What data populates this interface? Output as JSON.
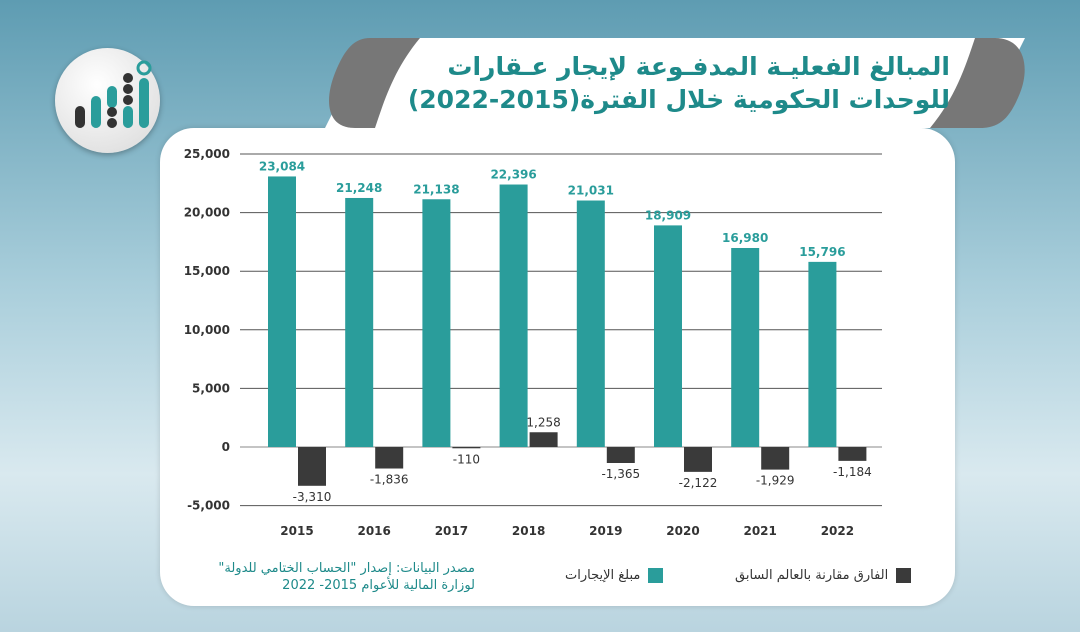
{
  "title": {
    "line1": "المبالغ الفعليـة المدفـوعة لإيجار عـقارات",
    "line2": "للوحدات الحكومية خلال الفترة(2015-2022)"
  },
  "source": {
    "line1": "مصدر البيانات: إصدار \"الحساب الختامي للدولة\"",
    "line2": "لوزارة المالية للأعوام 2015- 2022"
  },
  "colors": {
    "rent": "#2a9d9b",
    "diff": "#3a3a3a",
    "title": "#1e8a8a"
  },
  "logo_icon": "bar-chart-logo-icon",
  "chart_data": {
    "type": "bar",
    "categories": [
      "2015",
      "2016",
      "2017",
      "2018",
      "2019",
      "2020",
      "2021",
      "2022"
    ],
    "series": [
      {
        "name": "مبلغ الإيجارات",
        "values": [
          23084,
          21248,
          21138,
          22396,
          21031,
          18909,
          16980,
          15796
        ],
        "labels": [
          "23,084",
          "21,248",
          "21,138",
          "22,396",
          "21,031",
          "18,909",
          "16,980",
          "15,796"
        ]
      },
      {
        "name": "الفارق مقارنة بالعالم السابق",
        "values": [
          -3310,
          -1836,
          -110,
          1258,
          -1365,
          -2122,
          -1929,
          -1184
        ],
        "labels": [
          "-3,310",
          "-1,836",
          "-110",
          "1,258",
          "-1,365",
          "-2,122",
          "-1,929",
          "-1,184"
        ]
      }
    ],
    "yticks": [
      25000,
      20000,
      15000,
      10000,
      5000,
      0,
      -5000
    ],
    "ytick_labels": [
      "25,000",
      "20,000",
      "15,000",
      "10,000",
      "5,000",
      "0",
      "-5,000"
    ],
    "ylim": [
      -5000,
      25000
    ],
    "grid": true,
    "legend": "bottom-right"
  }
}
